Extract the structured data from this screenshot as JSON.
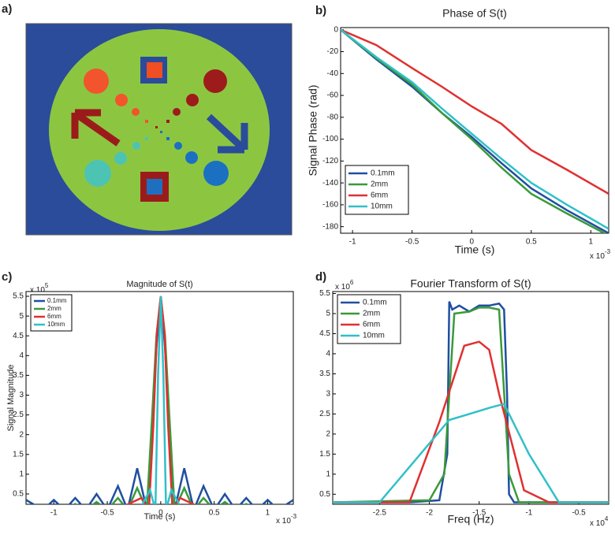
{
  "panel_a": {
    "label": "a)"
  },
  "chart_data": [
    {
      "type": "line",
      "panel": "b)",
      "title": "Phase of S(t)",
      "xlabel": "Time (s)",
      "ylabel": "Signal Phase (rad)",
      "x_exponent": {
        "base": "x 10",
        "exp": "-3"
      },
      "xlim": [
        -1.1,
        1.15
      ],
      "ylim": [
        -186,
        2
      ],
      "xticks": [
        -1,
        -0.5,
        0,
        0.5,
        1
      ],
      "yticks": [
        0,
        -20,
        -40,
        -60,
        -80,
        -100,
        -120,
        -140,
        -160,
        -180
      ],
      "legend": "lower left",
      "series": [
        {
          "name": "0.1mm",
          "color": "#1f4fa0",
          "x": [
            -1.1,
            -0.8,
            -0.5,
            -0.25,
            0,
            0.25,
            0.5,
            0.8,
            1.15
          ],
          "values": [
            0,
            -27,
            -52,
            -76,
            -98,
            -122,
            -145,
            -165,
            -186
          ]
        },
        {
          "name": "2mm",
          "color": "#3a9a3a",
          "x": [
            -1.1,
            -0.8,
            -0.5,
            -0.25,
            0,
            0.25,
            0.5,
            0.8,
            1.15
          ],
          "values": [
            0,
            -26,
            -50,
            -76,
            -100,
            -126,
            -150,
            -168,
            -188
          ]
        },
        {
          "name": "6mm",
          "color": "#e03030",
          "x": [
            -1.1,
            -0.8,
            -0.5,
            -0.25,
            0,
            0.25,
            0.5,
            0.8,
            1.15
          ],
          "values": [
            0,
            -14,
            -35,
            -52,
            -70,
            -86,
            -110,
            -128,
            -150
          ]
        },
        {
          "name": "10mm",
          "color": "#30c0c8",
          "x": [
            -1.1,
            -0.8,
            -0.5,
            -0.25,
            0,
            0.25,
            0.5,
            0.8,
            1.15
          ],
          "values": [
            0,
            -25,
            -48,
            -72,
            -95,
            -118,
            -140,
            -160,
            -182
          ]
        }
      ]
    },
    {
      "type": "line",
      "panel": "c)",
      "title": "Magnitude of S(t)",
      "xlabel": "Time (s)",
      "ylabel": "Signal Magnitude",
      "x_exponent": {
        "base": "x 10",
        "exp": "-3"
      },
      "y_exponent": {
        "base": "x 10",
        "exp": "5"
      },
      "xlim": [
        -1.26,
        1.24
      ],
      "ylim": [
        0.24,
        5.62
      ],
      "xticks": [
        -1,
        -0.5,
        0,
        0.5,
        1
      ],
      "yticks": [
        0.5,
        1,
        1.5,
        2,
        2.5,
        3,
        3.5,
        4,
        4.5,
        5,
        5.5
      ],
      "legend": "upper left",
      "series": [
        {
          "name": "0.1mm",
          "color": "#1f4fa0",
          "x": [
            -1.26,
            -1.1,
            -1.0,
            -0.9,
            -0.8,
            -0.7,
            -0.6,
            -0.5,
            -0.4,
            -0.31,
            -0.22,
            -0.13,
            -0.08,
            -0.04,
            0,
            0.04,
            0.08,
            0.13,
            0.22,
            0.31,
            0.4,
            0.5,
            0.6,
            0.7,
            0.8,
            0.9,
            1.0,
            1.1,
            1.24
          ],
          "values": [
            0.35,
            0.1,
            0.35,
            0.1,
            0.4,
            0.1,
            0.5,
            0.1,
            0.7,
            0.1,
            1.15,
            0.1,
            2.2,
            4.2,
            5.5,
            4.2,
            2.2,
            0.1,
            1.15,
            0.1,
            0.7,
            0.1,
            0.5,
            0.1,
            0.4,
            0.1,
            0.35,
            0.1,
            0.35
          ]
        },
        {
          "name": "2mm",
          "color": "#3a9a3a",
          "x": [
            -1.26,
            -1.1,
            -1.0,
            -0.9,
            -0.8,
            -0.7,
            -0.6,
            -0.5,
            -0.4,
            -0.31,
            -0.22,
            -0.13,
            -0.08,
            -0.04,
            0,
            0.04,
            0.08,
            0.13,
            0.22,
            0.31,
            0.4,
            0.5,
            0.6,
            0.7,
            0.8,
            0.9,
            1.0,
            1.1,
            1.24
          ],
          "values": [
            0.2,
            0.1,
            0.2,
            0.1,
            0.25,
            0.1,
            0.3,
            0.1,
            0.4,
            0.1,
            0.65,
            0.1,
            2.5,
            4.5,
            5.5,
            4.5,
            2.5,
            0.1,
            0.65,
            0.1,
            0.4,
            0.1,
            0.3,
            0.1,
            0.25,
            0.1,
            0.2,
            0.1,
            0.2
          ]
        },
        {
          "name": "6mm",
          "color": "#e03030",
          "x": [
            -1.26,
            -0.4,
            -0.3,
            -0.18,
            -0.11,
            -0.07,
            -0.035,
            0,
            0.035,
            0.07,
            0.11,
            0.18,
            0.3,
            0.4,
            1.24
          ],
          "values": [
            0.1,
            0.1,
            0.25,
            0.4,
            0.1,
            2.2,
            4.6,
            5.5,
            4.6,
            2.2,
            0.1,
            0.4,
            0.25,
            0.1,
            0.1
          ]
        },
        {
          "name": "10mm",
          "color": "#30c0c8",
          "x": [
            -1.26,
            -0.2,
            -0.1,
            -0.05,
            -0.025,
            0,
            0.025,
            0.05,
            0.1,
            0.2,
            1.24
          ],
          "values": [
            0.1,
            0.1,
            0.6,
            0.1,
            3.5,
            5.5,
            3.5,
            0.1,
            0.6,
            0.1,
            0.1
          ]
        }
      ]
    },
    {
      "type": "line",
      "panel": "d)",
      "title": "Fourier Transform of S(t)",
      "xlabel": "Freq (Hz)",
      "x_exponent": {
        "base": "x 10",
        "exp": "4"
      },
      "y_exponent": {
        "base": "x 10",
        "exp": "6"
      },
      "xlim": [
        -2.97,
        -0.2
      ],
      "ylim": [
        0.25,
        5.55
      ],
      "xticks": [
        -2.5,
        -2,
        -1.5,
        -1,
        -0.5
      ],
      "yticks": [
        0.5,
        1,
        1.5,
        2,
        2.5,
        3,
        3.5,
        4,
        4.5,
        5,
        5.5
      ],
      "legend": "upper left",
      "series": [
        {
          "name": "0.1mm",
          "color": "#1f4fa0",
          "x": [
            -2.97,
            -2.2,
            -1.9,
            -1.82,
            -1.8,
            -1.77,
            -1.7,
            -1.6,
            -1.5,
            -1.4,
            -1.3,
            -1.25,
            -1.22,
            -1.2,
            -1.15,
            -0.2
          ],
          "values": [
            0.3,
            0.3,
            0.35,
            1.5,
            5.3,
            5.1,
            5.2,
            5.05,
            5.2,
            5.2,
            5.25,
            5.1,
            3,
            0.5,
            0.3,
            0.3
          ]
        },
        {
          "name": "2mm",
          "color": "#3a9a3a",
          "x": [
            -2.97,
            -2,
            -1.85,
            -1.75,
            -1.6,
            -1.5,
            -1.4,
            -1.3,
            -1.2,
            -1.1,
            -0.2
          ],
          "values": [
            0.3,
            0.35,
            1,
            5,
            5.05,
            5.15,
            5.15,
            5.1,
            1,
            0.3,
            0.3
          ]
        },
        {
          "name": "6mm",
          "color": "#e03030",
          "x": [
            -2.97,
            -2.2,
            -1.9,
            -1.65,
            -1.5,
            -1.4,
            -1.3,
            -1.05,
            -0.8,
            -0.2
          ],
          "values": [
            0.3,
            0.3,
            2.3,
            4.2,
            4.3,
            4.1,
            3,
            0.6,
            0.3,
            0.3
          ]
        },
        {
          "name": "10mm",
          "color": "#30c0c8",
          "x": [
            -2.97,
            -2.5,
            -1.8,
            -1.6,
            -1.4,
            -1.25,
            -1.0,
            -0.7,
            -0.2
          ],
          "values": [
            0.3,
            0.3,
            2.35,
            2.5,
            2.65,
            2.75,
            1.5,
            0.3,
            0.3
          ]
        }
      ]
    }
  ]
}
